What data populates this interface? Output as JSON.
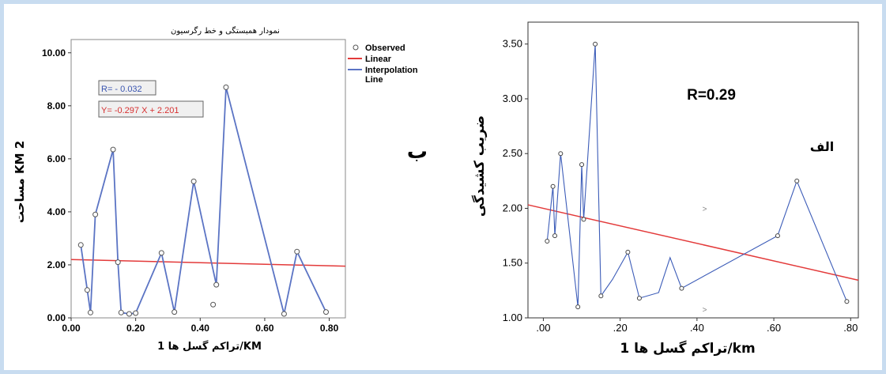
{
  "chart_data": [
    {
      "type": "line",
      "title": "نمودار همبستگی و خط رگرسیون",
      "xlabel": "تراکم گسل ها 1/KM",
      "ylabel": "مساحت KM 2",
      "xlim": [
        0,
        0.85
      ],
      "ylim": [
        0,
        10.5
      ],
      "x_ticks": [
        "0.00",
        "0.20",
        "0.40",
        "0.60",
        "0.80"
      ],
      "y_ticks": [
        "0.00",
        "2.00",
        "4.00",
        "6.00",
        "8.00",
        "10.00"
      ],
      "legend": [
        "Observed",
        "Linear",
        "Interpolation Line"
      ],
      "legend_position": "top-right",
      "annotations": {
        "r": "R= - 0.032",
        "equation": "Y= -0.297 X + 2.201"
      },
      "side_label": "ب",
      "observed": [
        {
          "x": 0.03,
          "y": 2.75
        },
        {
          "x": 0.05,
          "y": 1.05
        },
        {
          "x": 0.06,
          "y": 0.2
        },
        {
          "x": 0.075,
          "y": 3.9
        },
        {
          "x": 0.13,
          "y": 6.35
        },
        {
          "x": 0.145,
          "y": 2.1
        },
        {
          "x": 0.155,
          "y": 0.2
        },
        {
          "x": 0.18,
          "y": 0.15
        },
        {
          "x": 0.2,
          "y": 0.18
        },
        {
          "x": 0.28,
          "y": 2.45
        },
        {
          "x": 0.32,
          "y": 0.22
        },
        {
          "x": 0.38,
          "y": 5.15
        },
        {
          "x": 0.44,
          "y": 0.5
        },
        {
          "x": 0.45,
          "y": 1.25
        },
        {
          "x": 0.48,
          "y": 8.7
        },
        {
          "x": 0.66,
          "y": 0.15
        },
        {
          "x": 0.7,
          "y": 2.5
        },
        {
          "x": 0.79,
          "y": 0.22
        }
      ],
      "interpolation": [
        [
          0.03,
          2.75
        ],
        [
          0.05,
          1.05
        ],
        [
          0.06,
          0.2
        ],
        [
          0.075,
          3.9
        ],
        [
          0.13,
          6.35
        ],
        [
          0.145,
          2.1
        ],
        [
          0.155,
          0.2
        ],
        [
          0.18,
          0.15
        ],
        [
          0.2,
          0.18
        ],
        [
          0.28,
          2.45
        ],
        [
          0.32,
          0.22
        ],
        [
          0.38,
          5.15
        ],
        [
          0.45,
          1.25
        ],
        [
          0.48,
          8.7
        ],
        [
          0.66,
          0.15
        ],
        [
          0.7,
          2.5
        ],
        [
          0.79,
          0.22
        ]
      ],
      "linear": {
        "slope": -0.297,
        "intercept": 2.201
      },
      "colors": {
        "interpolation": "#5b74c4",
        "linear": "#e33a3a",
        "marker": "#555555"
      }
    },
    {
      "type": "line",
      "title": "",
      "xlabel": "تراکم گسل ها 1/km",
      "ylabel": "ضریب کشیدگی",
      "xlim": [
        -0.04,
        0.82
      ],
      "ylim": [
        1.0,
        3.7
      ],
      "x_ticks": [
        ".00",
        ".20",
        ".40",
        ".60",
        ".80"
      ],
      "y_ticks": [
        "1.00",
        "1.50",
        "2.00",
        "2.50",
        "3.00",
        "3.50"
      ],
      "annotations": {
        "r": "R=0.29"
      },
      "side_label": "الف",
      "observed": [
        {
          "x": 0.01,
          "y": 1.7
        },
        {
          "x": 0.025,
          "y": 2.2
        },
        {
          "x": 0.03,
          "y": 1.75
        },
        {
          "x": 0.045,
          "y": 2.5
        },
        {
          "x": 0.09,
          "y": 1.1
        },
        {
          "x": 0.1,
          "y": 2.4
        },
        {
          "x": 0.105,
          "y": 1.9
        },
        {
          "x": 0.135,
          "y": 3.5
        },
        {
          "x": 0.15,
          "y": 1.2
        },
        {
          "x": 0.22,
          "y": 1.6
        },
        {
          "x": 0.25,
          "y": 1.18
        },
        {
          "x": 0.36,
          "y": 1.27
        },
        {
          "x": 0.61,
          "y": 1.75
        },
        {
          "x": 0.66,
          "y": 2.25
        },
        {
          "x": 0.79,
          "y": 1.15
        }
      ],
      "interpolation": [
        [
          0.01,
          1.7
        ],
        [
          0.025,
          2.2
        ],
        [
          0.03,
          1.75
        ],
        [
          0.045,
          2.5
        ],
        [
          0.09,
          1.1
        ],
        [
          0.1,
          2.4
        ],
        [
          0.105,
          1.9
        ],
        [
          0.135,
          3.5
        ],
        [
          0.15,
          1.2
        ],
        [
          0.18,
          1.35
        ],
        [
          0.22,
          1.6
        ],
        [
          0.25,
          1.18
        ],
        [
          0.3,
          1.23
        ],
        [
          0.33,
          1.55
        ],
        [
          0.36,
          1.27
        ],
        [
          0.61,
          1.75
        ],
        [
          0.66,
          2.25
        ],
        [
          0.79,
          1.15
        ]
      ],
      "linear": {
        "slope": -0.8,
        "intercept": 2.0
      },
      "extra_marks": [
        {
          "x": 0.42,
          "y": 2.0
        },
        {
          "x": 0.42,
          "y": 1.08
        }
      ],
      "colors": {
        "interpolation": "#3c5cb8",
        "linear": "#e33a3a",
        "marker": "#444444"
      }
    }
  ]
}
